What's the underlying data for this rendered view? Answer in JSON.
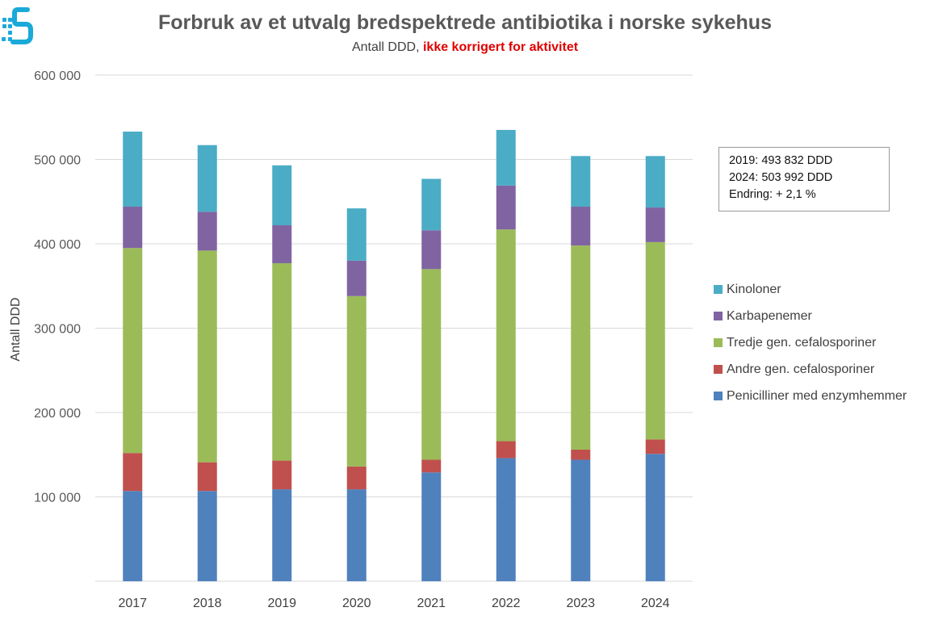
{
  "chart_data": {
    "type": "bar",
    "stacked": true,
    "title": "Forbruk av et utvalg bredspektrede antibiotika i norske sykehus",
    "subtitle_plain": "Antall DDD, ",
    "subtitle_highlight": "ikke korrigert for aktivitet",
    "xlabel": "",
    "ylabel": "Antall DDD",
    "ylim": [
      0,
      600000
    ],
    "yticks": [
      {
        "value": 100000,
        "label": "100 000"
      },
      {
        "value": 200000,
        "label": "200 000"
      },
      {
        "value": 300000,
        "label": "300 000"
      },
      {
        "value": 400000,
        "label": "400 000"
      },
      {
        "value": 500000,
        "label": "500 000"
      },
      {
        "value": 600000,
        "label": "600 000"
      }
    ],
    "grid": true,
    "legend_position": "right",
    "categories": [
      "2017",
      "2018",
      "2019",
      "2020",
      "2021",
      "2022",
      "2023",
      "2024"
    ],
    "series": [
      {
        "name": "Penicilliner med enzymhemmer",
        "color": "#4f81bd",
        "values": [
          107000,
          107000,
          109000,
          109000,
          129000,
          146000,
          144000,
          151000
        ]
      },
      {
        "name": "Andre gen. cefalosporiner",
        "color": "#c0504d",
        "values": [
          45000,
          34000,
          34000,
          27000,
          15000,
          20000,
          12000,
          17000
        ]
      },
      {
        "name": "Tredje gen. cefalosporiner",
        "color": "#9bbb59",
        "values": [
          243000,
          251000,
          234000,
          202000,
          226000,
          251000,
          242000,
          234000
        ]
      },
      {
        "name": "Karbapenemer",
        "color": "#8064a2",
        "values": [
          49000,
          46000,
          45000,
          42000,
          46000,
          52000,
          46000,
          41000
        ]
      },
      {
        "name": "Kinoloner",
        "color": "#4bacc6",
        "values": [
          89000,
          79000,
          71000,
          62000,
          61000,
          66000,
          60000,
          61000
        ]
      }
    ],
    "annotation_lines": [
      "2019: 493 832 DDD",
      "2024: 503 992 DDD",
      "Endring: + 2,1 %"
    ]
  },
  "colors": {
    "title": "#595959",
    "highlight": "#e00000",
    "grid": "#d9d9d9",
    "logo": "#1aa9d9"
  },
  "logo": {
    "icon": "logo-icon"
  }
}
